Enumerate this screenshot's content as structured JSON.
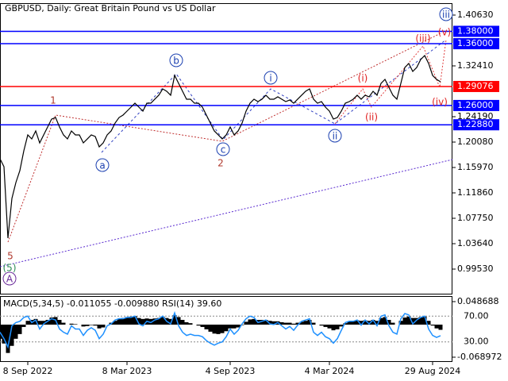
{
  "chart_data": [
    {
      "type": "line",
      "title": "GBPUSD, Daily:  Great Britain Pound vs US Dollar",
      "categories": [
        null,
        null,
        null,
        null,
        null,
        null,
        null,
        "8 Sep 2022",
        null,
        null,
        null,
        null,
        null,
        null,
        null,
        null,
        null,
        null,
        null,
        null,
        null,
        null,
        null,
        null,
        null,
        null,
        null,
        null,
        null,
        null,
        null,
        null,
        "8 Mar 2023",
        null,
        null,
        null,
        null,
        null,
        null,
        null,
        null,
        null,
        null,
        null,
        null,
        null,
        null,
        null,
        null,
        null,
        null,
        null,
        null,
        null,
        null,
        null,
        null,
        null,
        "4 Sep 2023",
        null,
        null,
        null,
        null,
        null,
        null,
        null,
        null,
        null,
        null,
        null,
        null,
        null,
        null,
        null,
        null,
        null,
        null,
        null,
        null,
        null,
        null,
        null,
        null,
        "4 Mar 2024",
        null,
        null,
        null,
        null,
        null,
        null,
        null,
        null,
        null,
        null,
        null,
        null,
        null,
        null,
        null,
        null,
        null,
        null,
        null,
        null,
        null,
        null,
        null,
        null,
        null,
        "29 Aug 2024",
        null,
        null
      ],
      "series": [
        {
          "color": "#000000",
          "values": [
            1.1738,
            1.161,
            1.0454,
            1.1096,
            1.1353,
            1.1546,
            1.1867,
            1.2124,
            1.2059,
            1.2188,
            1.1995,
            1.2124,
            1.2252,
            1.238,
            1.2406,
            1.2252,
            1.2124,
            1.2059,
            1.2188,
            1.2124,
            1.2124,
            1.1995,
            1.2059,
            1.2124,
            1.2098,
            1.1931,
            1.1995,
            1.2124,
            1.2188,
            1.2316,
            1.2406,
            1.2445,
            1.2509,
            1.2573,
            1.2637,
            1.2573,
            1.2509,
            1.2637,
            1.2637,
            1.2702,
            1.2766,
            1.2868,
            1.283,
            1.2766,
            1.3087,
            1.2958,
            1.283,
            1.2702,
            1.2702,
            1.2637,
            1.2637,
            1.2573,
            1.2445,
            1.2316,
            1.2188,
            1.2124,
            1.2059,
            1.2124,
            1.2252,
            1.2124,
            1.2188,
            1.2316,
            1.2509,
            1.2637,
            1.2702,
            1.2663,
            1.2702,
            1.2766,
            1.2702,
            1.2702,
            1.274,
            1.2702,
            1.2663,
            1.2689,
            1.2637,
            1.2702,
            1.2766,
            1.283,
            1.2868,
            1.2702,
            1.2637,
            1.2663,
            1.2573,
            1.2509,
            1.238,
            1.2406,
            1.2509,
            1.2637,
            1.2663,
            1.2702,
            1.2766,
            1.2702,
            1.2766,
            1.274,
            1.283,
            1.2766,
            1.2958,
            1.3023,
            1.2894,
            1.2766,
            1.2702,
            1.2958,
            1.3215,
            1.328,
            1.3151,
            1.3215,
            1.3344,
            1.3408,
            1.328,
            1.3087,
            1.3023,
            1.2984
          ]
        }
      ],
      "ylim": [
        0.95548,
        1.42557
      ],
      "yticks": [
        {
          "value": 1.4063,
          "label": "1.40630"
        },
        {
          "value": 1.3241,
          "label": "1.32410"
        },
        {
          "value": 1.2419,
          "label": "1.24190"
        },
        {
          "value": 1.2008,
          "label": "1.20080"
        },
        {
          "value": 1.1597,
          "label": "1.15970"
        },
        {
          "value": 1.1186,
          "label": "1.11860"
        },
        {
          "value": 1.0775,
          "label": "1.07750"
        },
        {
          "value": 1.0364,
          "label": "1.03640"
        },
        {
          "value": 0.9953,
          "label": "0.99530"
        }
      ],
      "levels": [
        {
          "value": 1.38,
          "label": "1.38000",
          "color": "#0000ff"
        },
        {
          "value": 1.36,
          "label": "1.36000",
          "color": "#0000ff"
        },
        {
          "value": 1.29076,
          "label": "1.29076",
          "color": "#ff0000"
        },
        {
          "value": 1.26,
          "label": "1.26000",
          "color": "#0000ff"
        },
        {
          "value": 1.2288,
          "label": "1.22880",
          "color": "#0000ff"
        }
      ],
      "annotations": [
        {
          "text": "1",
          "color": "#b03a2e",
          "circled": false
        },
        {
          "text": "a",
          "color": "#1a3fb0",
          "circled": true
        },
        {
          "text": "b",
          "color": "#1a3fb0",
          "circled": true
        },
        {
          "text": "c",
          "color": "#1a3fb0",
          "circled": true
        },
        {
          "text": "2",
          "color": "#b03a2e",
          "circled": false
        },
        {
          "text": "i",
          "color": "#1a3fb0",
          "circled": true
        },
        {
          "text": "ii",
          "color": "#1a3fb0",
          "circled": true
        },
        {
          "text": "(i)",
          "color": "#e02020",
          "circled": false
        },
        {
          "text": "(ii)",
          "color": "#e02020",
          "circled": false
        },
        {
          "text": "(iii)",
          "color": "#e02020",
          "circled": false
        },
        {
          "text": "(iv)",
          "color": "#e02020",
          "circled": false
        },
        {
          "text": "(v)",
          "color": "#e02020",
          "circled": false
        },
        {
          "text": "iii",
          "color": "#1a3fb0",
          "circled": true
        },
        {
          "text": "5",
          "color": "#b03a2e",
          "circled": false
        },
        {
          "text": "(5)",
          "color": "#2e8b57",
          "circled": false
        },
        {
          "text": "A",
          "color": "#6a2a9a",
          "circled": true
        }
      ]
    },
    {
      "type": "indicator",
      "title": "MACD(5,34,5) -0.011055 -0.009880 RSI(14) 39.60",
      "series": [
        {
          "color": "#000000",
          "values": [
            -0.03,
            -0.04,
            -0.06,
            -0.045,
            -0.03,
            -0.02,
            -0.005,
            0.008,
            0.01,
            0.012,
            0.008,
            0.008,
            0.01,
            0.015,
            0.016,
            0.01,
            0.004,
            0,
            0.002,
            0.001,
            0,
            -0.004,
            -0.003,
            -0.001,
            -0.002,
            -0.008,
            -0.006,
            0,
            0.004,
            0.008,
            0.012,
            0.014,
            0.016,
            0.017,
            0.018,
            0.014,
            0.012,
            0.013,
            0.012,
            0.013,
            0.014,
            0.017,
            0.014,
            0.012,
            0.02,
            0.016,
            0.01,
            0.005,
            0.003,
            0,
            -0.002,
            -0.005,
            -0.01,
            -0.015,
            -0.019,
            -0.02,
            -0.018,
            -0.014,
            -0.008,
            -0.008,
            -0.006,
            -0.001,
            0.006,
            0.011,
            0.012,
            0.01,
            0.01,
            0.01,
            0.008,
            0.007,
            0.007,
            0.005,
            0.004,
            0.004,
            0.002,
            0.004,
            0.006,
            0.008,
            0.01,
            0.004,
            0,
            -0.002,
            -0.005,
            -0.008,
            -0.012,
            -0.01,
            -0.004,
            0.003,
            0.006,
            0.008,
            0.009,
            0.008,
            0.009,
            0.008,
            0.01,
            0.008,
            0.014,
            0.016,
            0.01,
            0.004,
            0,
            0.008,
            0.015,
            0.017,
            0.014,
            0.014,
            0.016,
            0.017,
            0.008,
            -0.002,
            -0.008,
            -0.011055
          ]
        },
        {
          "color": "#1e90ff",
          "axis": "y2",
          "values": [
            45,
            35,
            22,
            55,
            60,
            62,
            68,
            70,
            60,
            64,
            50,
            58,
            62,
            66,
            64,
            50,
            45,
            42,
            55,
            50,
            50,
            40,
            48,
            52,
            48,
            35,
            42,
            55,
            58,
            64,
            66,
            66,
            68,
            68,
            70,
            58,
            55,
            62,
            60,
            64,
            66,
            70,
            62,
            58,
            75,
            55,
            45,
            40,
            42,
            40,
            40,
            38,
            32,
            28,
            25,
            28,
            30,
            38,
            50,
            42,
            48,
            58,
            66,
            70,
            68,
            60,
            62,
            64,
            58,
            57,
            60,
            55,
            50,
            54,
            48,
            56,
            62,
            64,
            66,
            45,
            40,
            45,
            38,
            35,
            28,
            35,
            48,
            60,
            62,
            62,
            64,
            56,
            64,
            58,
            64,
            55,
            70,
            72,
            55,
            45,
            42,
            66,
            74,
            72,
            58,
            64,
            68,
            70,
            50,
            40,
            37,
            39.6
          ]
        }
      ],
      "ylim": [
        -0.07738,
        0.05877
      ],
      "yticks": [
        0.048688,
        -0.068972
      ],
      "y2lim": [
        0,
        100
      ],
      "y2ticks": [
        {
          "value": 70,
          "label": "70.00"
        },
        {
          "value": 30,
          "label": "30.00"
        }
      ]
    }
  ]
}
